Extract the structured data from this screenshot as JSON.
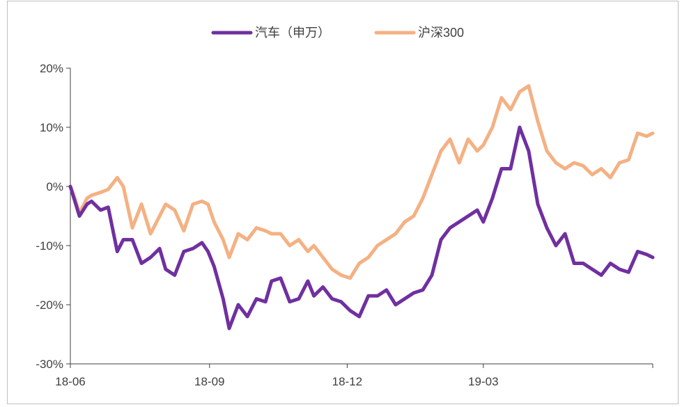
{
  "chart_data": {
    "type": "line",
    "title": "",
    "xlabel": "",
    "ylabel": "",
    "ylim": [
      -30,
      20
    ],
    "y_unit": "%",
    "yticks": [
      20,
      10,
      0,
      -10,
      -20,
      -30
    ],
    "ytick_labels": [
      "20%",
      "10%",
      "0%",
      "-10%",
      "-20%",
      "-30%"
    ],
    "xticks": [
      "18-06",
      "18-09",
      "18-12",
      "19-03"
    ],
    "grid": false,
    "legend_position": "top",
    "series": [
      {
        "name": "汽车（申万）",
        "color": "#7030a0",
        "x": [
          "2018-06-01",
          "2018-06-04",
          "2018-06-07",
          "2018-06-12",
          "2018-06-15",
          "2018-06-21",
          "2018-06-26",
          "2018-07-02",
          "2018-07-06",
          "2018-07-12",
          "2018-07-18",
          "2018-07-24",
          "2018-07-30",
          "2018-08-03",
          "2018-08-09",
          "2018-08-15",
          "2018-08-21",
          "2018-08-27",
          "2018-08-31",
          "2018-09-04",
          "2018-09-10",
          "2018-09-14",
          "2018-09-20",
          "2018-09-26",
          "2018-10-02",
          "2018-10-08",
          "2018-10-12",
          "2018-10-18",
          "2018-10-24",
          "2018-10-30",
          "2018-11-05",
          "2018-11-09",
          "2018-11-15",
          "2018-11-21",
          "2018-11-27",
          "2018-12-03",
          "2018-12-09",
          "2018-12-15",
          "2018-12-21",
          "2018-12-27",
          "2019-01-02",
          "2019-01-08",
          "2019-01-14",
          "2019-01-20",
          "2019-01-26",
          "2019-02-01",
          "2019-02-07",
          "2019-02-13",
          "2019-02-19",
          "2019-02-25",
          "2019-03-01",
          "2019-03-07",
          "2019-03-13",
          "2019-03-19",
          "2019-03-25",
          "2019-03-31",
          "2019-04-06",
          "2019-04-12",
          "2019-04-18",
          "2019-04-24",
          "2019-04-30",
          "2019-05-06",
          "2019-05-12",
          "2019-05-18",
          "2019-05-24",
          "2019-05-30",
          "2019-06-05",
          "2019-06-11",
          "2019-06-17",
          "2019-06-21"
        ],
        "values": [
          0,
          -2.5,
          -5,
          -3,
          -2.5,
          -4,
          -3.5,
          -11,
          -9,
          -9,
          -13,
          -12,
          -10.5,
          -14,
          -15,
          -11,
          -10.5,
          -9.5,
          -11,
          -13.5,
          -19,
          -24,
          -20,
          -22,
          -19,
          -19.5,
          -16,
          -15.5,
          -19.5,
          -19,
          -16,
          -18.5,
          -17,
          -19,
          -19.5,
          -21,
          -22,
          -18.5,
          -18.5,
          -17.5,
          -20,
          -19,
          -18,
          -17.5,
          -15,
          -9,
          -7,
          -6,
          -5,
          -4,
          -6,
          -2,
          3,
          3,
          10,
          6,
          -3,
          -7,
          -10,
          -8,
          -13,
          -13,
          -14,
          -15,
          -13,
          -14,
          -14.5,
          -11,
          -11.5,
          -12
        ]
      },
      {
        "name": "沪深300",
        "color": "#f4b183",
        "x": [
          "2018-06-01",
          "2018-06-04",
          "2018-06-07",
          "2018-06-12",
          "2018-06-15",
          "2018-06-21",
          "2018-06-26",
          "2018-07-02",
          "2018-07-06",
          "2018-07-12",
          "2018-07-18",
          "2018-07-24",
          "2018-07-30",
          "2018-08-03",
          "2018-08-09",
          "2018-08-15",
          "2018-08-21",
          "2018-08-27",
          "2018-08-31",
          "2018-09-04",
          "2018-09-10",
          "2018-09-14",
          "2018-09-20",
          "2018-09-26",
          "2018-10-02",
          "2018-10-08",
          "2018-10-12",
          "2018-10-18",
          "2018-10-24",
          "2018-10-30",
          "2018-11-05",
          "2018-11-09",
          "2018-11-15",
          "2018-11-21",
          "2018-11-27",
          "2018-12-03",
          "2018-12-09",
          "2018-12-15",
          "2018-12-21",
          "2018-12-27",
          "2019-01-02",
          "2019-01-08",
          "2019-01-14",
          "2019-01-20",
          "2019-01-26",
          "2019-02-01",
          "2019-02-07",
          "2019-02-13",
          "2019-02-19",
          "2019-02-25",
          "2019-03-01",
          "2019-03-07",
          "2019-03-13",
          "2019-03-19",
          "2019-03-25",
          "2019-03-31",
          "2019-04-06",
          "2019-04-12",
          "2019-04-18",
          "2019-04-24",
          "2019-04-30",
          "2019-05-06",
          "2019-05-12",
          "2019-05-18",
          "2019-05-24",
          "2019-05-30",
          "2019-06-05",
          "2019-06-11",
          "2019-06-17",
          "2019-06-21"
        ],
        "values": [
          0,
          -2,
          -4.5,
          -2,
          -1.5,
          -1,
          -0.5,
          1.5,
          0,
          -7,
          -3,
          -8,
          -5,
          -3,
          -4,
          -7.5,
          -3,
          -2.5,
          -3,
          -6,
          -9,
          -12,
          -8,
          -9,
          -7,
          -7.5,
          -8,
          -8,
          -10,
          -9,
          -11,
          -10,
          -12,
          -14,
          -15,
          -15.5,
          -13,
          -12,
          -10,
          -9,
          -8,
          -6,
          -5,
          -2,
          2,
          6,
          8,
          4,
          8,
          6,
          7,
          10,
          15,
          13,
          16,
          17,
          11,
          6,
          4,
          3,
          4,
          3.5,
          2,
          3,
          1.5,
          4,
          4.5,
          9,
          8.5,
          9
        ]
      }
    ]
  }
}
